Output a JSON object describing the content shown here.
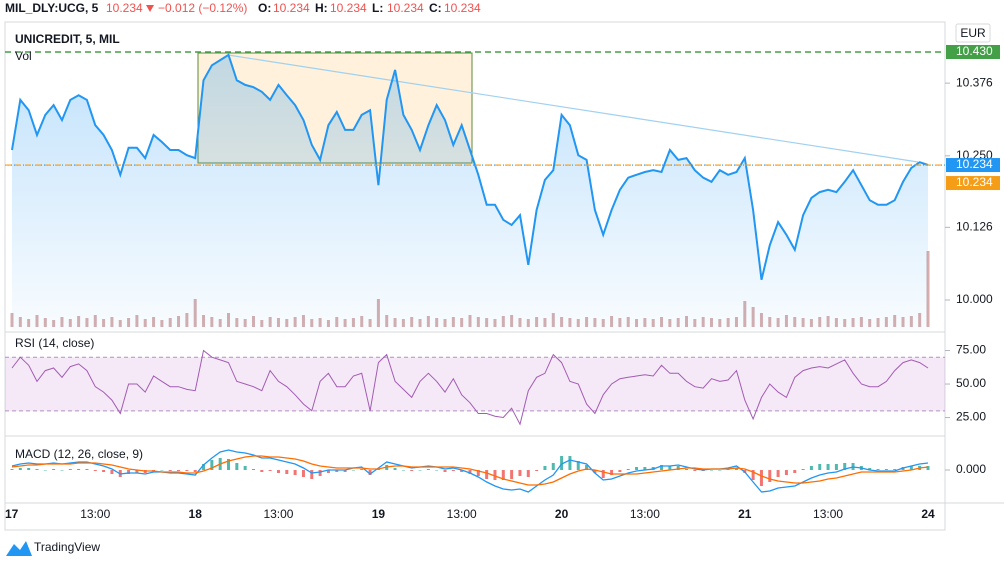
{
  "header": {
    "symbol": "MIL_DLY:UCG, 5",
    "last": 10.234,
    "change": "−0.012 (−0.12%)",
    "ohlc": [
      {
        "label": "O:",
        "value": 10.234
      },
      {
        "label": "H:",
        "value": 10.234
      },
      {
        "label": "L:",
        "value": 10.234
      },
      {
        "label": "C:",
        "value": 10.234
      }
    ]
  },
  "logo": "TradingView",
  "chart_data": [
    {
      "type": "line",
      "title": "UNICREDIT, 5, MIL",
      "currency": "EUR",
      "categories": [
        "17",
        null,
        null,
        null,
        null,
        null,
        null,
        null,
        null,
        null,
        "13:00",
        null,
        null,
        null,
        null,
        null,
        null,
        null,
        null,
        null,
        null,
        null,
        "18",
        null,
        null,
        null,
        null,
        null,
        null,
        null,
        null,
        null,
        "13:00",
        null,
        null,
        null,
        null,
        null,
        null,
        null,
        null,
        null,
        null,
        null,
        "19",
        null,
        null,
        null,
        null,
        null,
        null,
        null,
        null,
        null,
        "13:00",
        null,
        null,
        null,
        null,
        null,
        null,
        null,
        null,
        null,
        null,
        null,
        "20",
        null,
        null,
        null,
        null,
        null,
        null,
        null,
        null,
        null,
        "13:00",
        null,
        null,
        null,
        null,
        null,
        null,
        null,
        null,
        null,
        null,
        null,
        "21",
        null,
        null,
        null,
        null,
        null,
        null,
        null,
        null,
        null,
        "13:00",
        null,
        null,
        null,
        null,
        null,
        null,
        null,
        null,
        null,
        null,
        null,
        "24"
      ],
      "series": [
        {
          "color": "#2196f3",
          "values": [
            10.26,
            10.347,
            10.329,
            10.286,
            10.321,
            10.338,
            10.312,
            10.347,
            10.355,
            10.347,
            10.303,
            10.286,
            10.26,
            10.217,
            10.264,
            10.264,
            10.246,
            10.286,
            10.274,
            10.26,
            10.26,
            10.251,
            10.246,
            10.381,
            10.407,
            10.416,
            10.425,
            10.381,
            10.373,
            10.369,
            10.361,
            10.347,
            10.373,
            10.355,
            10.338,
            10.312,
            10.269,
            10.243,
            10.303,
            10.326,
            10.295,
            10.295,
            10.321,
            10.329,
            10.199,
            10.347,
            10.399,
            10.321,
            10.295,
            10.26,
            10.303,
            10.338,
            10.312,
            10.269,
            10.303,
            10.26,
            10.217,
            10.165,
            10.165,
            10.139,
            10.13,
            10.147,
            10.061,
            10.156,
            10.208,
            10.225,
            10.321,
            10.303,
            10.251,
            10.243,
            10.156,
            10.113,
            10.156,
            10.191,
            10.212,
            10.217,
            10.222,
            10.225,
            10.222,
            10.26,
            10.243,
            10.246,
            10.225,
            10.212,
            10.205,
            10.225,
            10.217,
            10.222,
            10.246,
            10.156,
            10.035,
            10.095,
            10.135,
            10.113,
            10.087,
            10.147,
            10.177,
            10.187,
            10.191,
            10.187,
            10.205,
            10.225,
            10.199,
            10.173,
            10.165,
            10.165,
            10.173,
            10.205,
            10.229,
            10.239,
            10.234
          ]
        }
      ],
      "volume": {
        "name": "Vol",
        "color": "#c48b8b",
        "values": [
          14,
          10,
          8,
          12,
          9,
          7,
          10,
          8,
          11,
          9,
          12,
          8,
          10,
          7,
          9,
          12,
          8,
          10,
          7,
          9,
          11,
          14,
          28,
          12,
          10,
          8,
          14,
          9,
          8,
          11,
          7,
          10,
          9,
          8,
          10,
          12,
          8,
          9,
          7,
          10,
          8,
          9,
          11,
          8,
          28,
          12,
          9,
          8,
          10,
          8,
          11,
          9,
          8,
          10,
          9,
          12,
          10,
          9,
          8,
          11,
          12,
          9,
          8,
          10,
          9,
          14,
          10,
          9,
          8,
          10,
          9,
          8,
          11,
          9,
          10,
          8,
          9,
          8,
          10,
          8,
          9,
          11,
          8,
          10,
          9,
          8,
          9,
          10,
          26,
          20,
          14,
          10,
          9,
          12,
          10,
          9,
          8,
          10,
          11,
          9,
          8,
          9,
          10,
          8,
          9,
          10,
          12,
          10,
          11,
          14,
          76
        ]
      },
      "ylim": [
        9.948,
        10.482
      ],
      "yticks": [
        {
          "value": 10,
          "label": "10.000"
        },
        10.126,
        {
          "value": 10.25,
          "label": "10.250"
        },
        10.376
      ],
      "markers": [
        {
          "value": 10.43,
          "label": "10.430",
          "color": "#43a047"
        },
        {
          "value": 10.234,
          "label": "10.234",
          "color": "#2196f3"
        },
        {
          "value": 10.234,
          "label": "10.234",
          "color": "#f59d16"
        }
      ]
    },
    {
      "type": "line",
      "title": "RSI (14, close)",
      "color": "#a35bb5",
      "band": [
        30,
        70
      ],
      "values": [
        62,
        70,
        64,
        52,
        60,
        62,
        55,
        63,
        65,
        60,
        48,
        44,
        38,
        28,
        50,
        50,
        44,
        56,
        52,
        48,
        48,
        46,
        45,
        75,
        70,
        68,
        66,
        52,
        50,
        48,
        45,
        60,
        52,
        48,
        42,
        35,
        30,
        52,
        58,
        48,
        48,
        56,
        58,
        30,
        66,
        72,
        52,
        46,
        40,
        52,
        58,
        52,
        44,
        54,
        42,
        36,
        28,
        28,
        26,
        25,
        32,
        20,
        45,
        55,
        58,
        72,
        66,
        52,
        50,
        35,
        28,
        42,
        50,
        54,
        55,
        56,
        57,
        56,
        64,
        58,
        58,
        52,
        48,
        47,
        54,
        52,
        53,
        60,
        38,
        24,
        40,
        50,
        44,
        40,
        55,
        60,
        62,
        63,
        62,
        65,
        68,
        58,
        50,
        48,
        48,
        52,
        60,
        66,
        68,
        66,
        62
      ],
      "ylim": [
        15.7,
        86.6
      ],
      "yticks": [
        {
          "value": 25,
          "label": "25.00"
        },
        {
          "value": 50,
          "label": "50.00"
        },
        {
          "value": 75,
          "label": "75.00"
        }
      ]
    },
    {
      "type": "macd",
      "title": "MACD (12, 26, close, 9)",
      "up_color": "#26a69a",
      "down_color": "#ef5350",
      "series": [
        {
          "color": "#2196f3",
          "values": [
            0.004,
            0.006,
            0.007,
            0.006,
            0.006,
            0.007,
            0.006,
            0.007,
            0.008,
            0.008,
            0.006,
            0.004,
            0.001,
            -0.004,
            -0.003,
            -0.003,
            -0.004,
            -0.002,
            -0.002,
            -0.003,
            -0.003,
            -0.004,
            -0.005,
            0.005,
            0.012,
            0.018,
            0.02,
            0.018,
            0.017,
            0.015,
            0.012,
            0.012,
            0.01,
            0.008,
            0.006,
            0.002,
            -0.003,
            -0.002,
            0,
            0,
            0,
            0.002,
            0.003,
            -0.004,
            0.002,
            0.008,
            0.006,
            0.004,
            0.002,
            0.003,
            0.004,
            0.003,
            0.001,
            0.002,
            0,
            -0.003,
            -0.007,
            -0.012,
            -0.016,
            -0.019,
            -0.02,
            -0.019,
            -0.022,
            -0.016,
            -0.01,
            -0.005,
            0.006,
            0.01,
            0.008,
            0.006,
            -0.003,
            -0.01,
            -0.009,
            -0.006,
            -0.003,
            -0.001,
            0,
            0.001,
            0.004,
            0.004,
            0.005,
            0.003,
            0.001,
            0,
            0.001,
            0.001,
            0.002,
            0.004,
            -0.002,
            -0.012,
            -0.022,
            -0.021,
            -0.018,
            -0.017,
            -0.016,
            -0.012,
            -0.008,
            -0.005,
            -0.003,
            -0.002,
            0.001,
            0.003,
            0.002,
            0,
            -0.001,
            -0.001,
            -0.001,
            0.002,
            0.004,
            0.006,
            0.007
          ]
        },
        {
          "color": "#ff6d00",
          "values": [
            0.003,
            0.004,
            0.005,
            0.005,
            0.006,
            0.006,
            0.006,
            0.006,
            0.007,
            0.007,
            0.007,
            0.006,
            0.005,
            0.003,
            0.001,
            0,
            -0.001,
            -0.001,
            -0.002,
            -0.002,
            -0.002,
            -0.003,
            -0.003,
            -0.001,
            0.002,
            0.006,
            0.009,
            0.011,
            0.013,
            0.014,
            0.014,
            0.013,
            0.013,
            0.012,
            0.011,
            0.009,
            0.006,
            0.004,
            0.003,
            0.002,
            0.002,
            0.002,
            0.002,
            0.001,
            0.001,
            0.003,
            0.004,
            0.004,
            0.003,
            0.003,
            0.003,
            0.003,
            0.003,
            0.003,
            0.002,
            0.001,
            -0.001,
            -0.003,
            -0.006,
            -0.009,
            -0.011,
            -0.013,
            -0.015,
            -0.015,
            -0.014,
            -0.012,
            -0.008,
            -0.004,
            -0.001,
            0.001,
            0,
            -0.002,
            -0.004,
            -0.004,
            -0.004,
            -0.004,
            -0.003,
            -0.002,
            -0.001,
            0,
            0.001,
            0.002,
            0.002,
            0.001,
            0.001,
            0.001,
            0.001,
            0.002,
            0.001,
            -0.002,
            -0.006,
            -0.009,
            -0.011,
            -0.012,
            -0.013,
            -0.013,
            -0.012,
            -0.011,
            -0.009,
            -0.008,
            -0.006,
            -0.004,
            -0.002,
            -0.002,
            -0.002,
            -0.002,
            -0.002,
            -0.001,
            0,
            0.002,
            0.003
          ]
        }
      ],
      "histogram": [
        0.001,
        0.002,
        0.002,
        0.001,
        0,
        0.001,
        0,
        0.001,
        0.001,
        0.001,
        -0.001,
        -0.002,
        -0.004,
        -0.007,
        -0.004,
        -0.003,
        -0.003,
        -0.001,
        0,
        -0.001,
        -0.001,
        -0.001,
        -0.002,
        0.006,
        0.01,
        0.012,
        0.011,
        0.007,
        0.004,
        0.001,
        -0.002,
        -0.001,
        -0.003,
        -0.004,
        -0.005,
        -0.007,
        -0.009,
        -0.006,
        -0.003,
        -0.002,
        -0.002,
        0,
        0.001,
        -0.005,
        0.001,
        0.005,
        0.002,
        0,
        -0.001,
        0,
        0.001,
        0,
        -0.002,
        -0.001,
        -0.002,
        -0.004,
        -0.006,
        -0.009,
        -0.01,
        -0.01,
        -0.009,
        -0.006,
        -0.007,
        -0.001,
        0.004,
        0.007,
        0.014,
        0.014,
        0.009,
        0.005,
        -0.003,
        -0.008,
        -0.005,
        -0.002,
        0.001,
        0.003,
        0.003,
        0.003,
        0.005,
        0.004,
        0.004,
        0.001,
        -0.001,
        -0.001,
        0,
        0,
        0.001,
        0.002,
        -0.003,
        -0.01,
        -0.016,
        -0.012,
        -0.007,
        -0.005,
        -0.003,
        0.001,
        0.004,
        0.006,
        0.006,
        0.006,
        0.007,
        0.007,
        0.004,
        0.002,
        0.001,
        0.001,
        0.001,
        0.003,
        0.004,
        0.004,
        0.004
      ],
      "ylim": [
        -0.03,
        0.03
      ],
      "yticks": [
        {
          "value": 0,
          "label": "0.000"
        }
      ]
    }
  ]
}
